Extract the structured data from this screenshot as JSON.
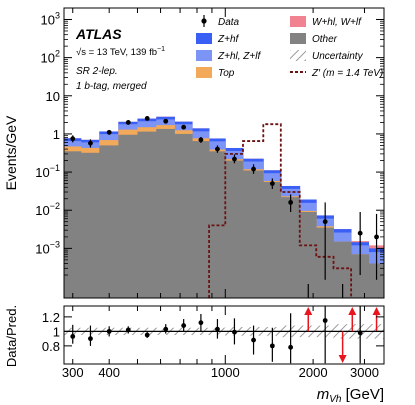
{
  "chart_data": [
    {
      "type": "bar",
      "panel": "main",
      "ylabel": "Events/GeV",
      "yscale": "log",
      "ylim": [
        5e-05,
        2000
      ],
      "y_ticks": [
        {
          "v": 1000,
          "b": "10",
          "e": "3"
        },
        {
          "v": 100,
          "b": "10",
          "e": "2"
        },
        {
          "v": 10,
          "b": "10",
          "e": ""
        },
        {
          "v": 1,
          "b": "1",
          "e": ""
        },
        {
          "v": 0.1,
          "b": "10",
          "e": "−1"
        },
        {
          "v": 0.01,
          "b": "10",
          "e": "−2"
        },
        {
          "v": 0.001,
          "b": "10",
          "e": "−3"
        }
      ],
      "xscale": "log",
      "xlim": [
        280,
        3500
      ],
      "annotations": {
        "experiment": "ATLAS",
        "energy_lumi": "√s = 13 TeV, 139 fb",
        "energy_lumi_sup": "−1",
        "region": "SR 2-lep.",
        "selection": "1 b-tag, merged"
      },
      "legend_placement": "top",
      "legend": [
        {
          "key": "data",
          "label": "Data",
          "style": "marker",
          "color": "#000000"
        },
        {
          "key": "whl",
          "label": "W+hl, W+lf",
          "style": "fill",
          "color": "#f0838f"
        },
        {
          "key": "zhf",
          "label": "Z+hf",
          "style": "fill",
          "color": "#3a5ff5"
        },
        {
          "key": "other",
          "label": "Other",
          "style": "fill",
          "color": "#828282"
        },
        {
          "key": "zhl",
          "label": "Z+hl, Z+lf",
          "style": "fill",
          "color": "#7b94f6"
        },
        {
          "key": "unc",
          "label": "Uncertainty",
          "style": "hatch",
          "color": "#b0b0b0"
        },
        {
          "key": "top",
          "label": "Top",
          "style": "fill",
          "color": "#f2a95a"
        },
        {
          "key": "zp",
          "label": "Z′ (m = 1.4 TeV)",
          "style": "dash",
          "color": "#6b1212"
        }
      ],
      "bins": [
        {
          "lo": 280,
          "hi": 320,
          "other": 0.35,
          "top": 0.12,
          "zhl": 0.18,
          "zhf": 0.12,
          "whl": 0.0
        },
        {
          "lo": 320,
          "hi": 370,
          "other": 0.32,
          "top": 0.11,
          "zhl": 0.17,
          "zhf": 0.1,
          "whl": 0.0
        },
        {
          "lo": 370,
          "hi": 430,
          "other": 0.5,
          "top": 0.19,
          "zhl": 0.3,
          "zhf": 0.17,
          "whl": 0.0
        },
        {
          "lo": 430,
          "hi": 500,
          "other": 0.95,
          "top": 0.35,
          "zhl": 0.5,
          "zhf": 0.28,
          "whl": 0.0
        },
        {
          "lo": 500,
          "hi": 580,
          "other": 1.15,
          "top": 0.35,
          "zhl": 0.65,
          "zhf": 0.37,
          "whl": 0.0
        },
        {
          "lo": 580,
          "hi": 670,
          "other": 1.35,
          "top": 0.35,
          "zhl": 0.7,
          "zhf": 0.42,
          "whl": 0.0
        },
        {
          "lo": 670,
          "hi": 770,
          "other": 1.0,
          "top": 0.25,
          "zhl": 0.55,
          "zhf": 0.3,
          "whl": 0.0
        },
        {
          "lo": 770,
          "hi": 880,
          "other": 0.65,
          "top": 0.12,
          "zhl": 0.4,
          "zhf": 0.23,
          "whl": 0.0
        },
        {
          "lo": 880,
          "hi": 1000,
          "other": 0.35,
          "top": 0.04,
          "zhl": 0.25,
          "zhf": 0.12,
          "whl": 0.0
        },
        {
          "lo": 1000,
          "hi": 1150,
          "other": 0.2,
          "top": 0.018,
          "zhl": 0.14,
          "zhf": 0.07,
          "whl": 0.0
        },
        {
          "lo": 1150,
          "hi": 1350,
          "other": 0.11,
          "top": 0.009,
          "zhl": 0.07,
          "zhf": 0.035,
          "whl": 0.0
        },
        {
          "lo": 1350,
          "hi": 1550,
          "other": 0.055,
          "top": 0.0035,
          "zhl": 0.035,
          "zhf": 0.018,
          "whl": 0.0
        },
        {
          "lo": 1550,
          "hi": 1800,
          "other": 0.022,
          "top": 0.0012,
          "zhl": 0.013,
          "zhf": 0.007,
          "whl": 0.0
        },
        {
          "lo": 1800,
          "hi": 2050,
          "other": 0.009,
          "top": 0.0006,
          "zhl": 0.006,
          "zhf": 0.0035,
          "whl": 0.0
        },
        {
          "lo": 2050,
          "hi": 2350,
          "other": 0.0035,
          "top": 0.0003,
          "zhl": 0.0022,
          "zhf": 0.0013,
          "whl": 0.0
        },
        {
          "lo": 2350,
          "hi": 2700,
          "other": 0.0015,
          "top": 0.0,
          "zhl": 0.0011,
          "zhf": 0.0006,
          "whl": 0.0
        },
        {
          "lo": 2700,
          "hi": 3100,
          "other": 0.0007,
          "top": 0.0,
          "zhl": 0.0005,
          "zhf": 0.00025,
          "whl": 0.0001
        },
        {
          "lo": 3100,
          "hi": 3500,
          "other": 0.0004,
          "top": 0.0,
          "zhl": 0.0004,
          "zhf": 0.0002,
          "whl": 0.0002
        }
      ],
      "zprime": [
        {
          "lo": 880,
          "hi": 1000,
          "y": 0.004
        },
        {
          "lo": 1000,
          "hi": 1150,
          "y": 0.3
        },
        {
          "lo": 1150,
          "hi": 1350,
          "y": 0.65
        },
        {
          "lo": 1350,
          "hi": 1550,
          "y": 1.8
        },
        {
          "lo": 1550,
          "hi": 1800,
          "y": 0.03
        },
        {
          "lo": 1800,
          "hi": 2050,
          "y": 0.0012
        },
        {
          "lo": 2050,
          "hi": 2350,
          "y": 0.0006
        },
        {
          "lo": 2350,
          "hi": 2700,
          "y": 0.0003
        }
      ],
      "data_points": [
        {
          "x": 300,
          "y": 0.75,
          "lo": 0.6,
          "hi": 0.92
        },
        {
          "x": 345,
          "y": 0.57,
          "lo": 0.44,
          "hi": 0.72
        },
        {
          "x": 400,
          "y": 1.1,
          "lo": 0.95,
          "hi": 1.27
        },
        {
          "x": 465,
          "y": 2.0,
          "lo": 1.8,
          "hi": 2.2
        },
        {
          "x": 540,
          "y": 2.55,
          "lo": 2.35,
          "hi": 2.77
        },
        {
          "x": 625,
          "y": 2.15,
          "lo": 1.95,
          "hi": 2.37
        },
        {
          "x": 720,
          "y": 1.5,
          "lo": 1.33,
          "hi": 1.68
        },
        {
          "x": 825,
          "y": 0.7,
          "lo": 0.58,
          "hi": 0.83
        },
        {
          "x": 940,
          "y": 0.4,
          "lo": 0.32,
          "hi": 0.5
        },
        {
          "x": 1075,
          "y": 0.22,
          "lo": 0.17,
          "hi": 0.29
        },
        {
          "x": 1250,
          "y": 0.12,
          "lo": 0.09,
          "hi": 0.16
        },
        {
          "x": 1450,
          "y": 0.05,
          "lo": 0.036,
          "hi": 0.068
        },
        {
          "x": 1675,
          "y": 0.016,
          "lo": 0.009,
          "hi": 0.026
        },
        {
          "x": 2200,
          "y": 0.005,
          "lo": 0.00015,
          "hi": 0.016
        },
        {
          "x": 2900,
          "y": 0.0025,
          "lo": 0.0002,
          "hi": 0.009
        },
        {
          "x": 3300,
          "y": 0.002,
          "lo": 0.00015,
          "hi": 0.008
        }
      ],
      "lower_limit_markers": [
        1925,
        2525
      ]
    },
    {
      "type": "scatter",
      "panel": "ratio",
      "ylabel": "Data/Pred.",
      "xlabel": "m",
      "xlabel_sub": "Vh",
      "xlabel_unit": " [GeV]",
      "xscale": "log",
      "xlim": [
        280,
        3500
      ],
      "ylim": [
        0.55,
        1.35
      ],
      "y_ticks": [
        {
          "v": 0.8,
          "label": "0.8"
        },
        {
          "v": 1.0,
          "label": "1"
        },
        {
          "v": 1.2,
          "label": "1.2"
        }
      ],
      "x_ticks": [
        {
          "v": 300,
          "label": "300"
        },
        {
          "v": 400,
          "label": "400"
        },
        {
          "v": 1000,
          "label": "1000"
        },
        {
          "v": 2000,
          "label": "2000"
        },
        {
          "v": 3000,
          "label": "3000"
        }
      ],
      "uncertainty_band": [
        {
          "lo": 280,
          "hi": 1000,
          "d": 0.05
        },
        {
          "lo": 1000,
          "hi": 1550,
          "d": 0.06
        },
        {
          "lo": 1550,
          "hi": 2350,
          "d": 0.08
        },
        {
          "lo": 2350,
          "hi": 3500,
          "d": 0.1
        }
      ],
      "points": [
        {
          "x": 300,
          "y": 0.93,
          "lo": 0.83,
          "hi": 1.09
        },
        {
          "x": 345,
          "y": 0.9,
          "lo": 0.8,
          "hi": 1.08
        },
        {
          "x": 400,
          "y": 1.0,
          "lo": 0.93,
          "hi": 1.07
        },
        {
          "x": 465,
          "y": 1.02,
          "lo": 0.97,
          "hi": 1.07
        },
        {
          "x": 540,
          "y": 0.95,
          "lo": 0.91,
          "hi": 0.99
        },
        {
          "x": 625,
          "y": 1.03,
          "lo": 0.97,
          "hi": 1.1
        },
        {
          "x": 720,
          "y": 1.08,
          "lo": 1.0,
          "hi": 1.17
        },
        {
          "x": 825,
          "y": 1.12,
          "lo": 1.0,
          "hi": 1.24
        },
        {
          "x": 940,
          "y": 1.03,
          "lo": 0.9,
          "hi": 1.17
        },
        {
          "x": 1075,
          "y": 0.99,
          "lo": 0.82,
          "hi": 1.18
        },
        {
          "x": 1250,
          "y": 0.88,
          "lo": 0.68,
          "hi": 1.08
        },
        {
          "x": 1450,
          "y": 0.8,
          "lo": 0.58,
          "hi": 1.05
        },
        {
          "x": 1675,
          "y": 0.78,
          "lo": 0.56,
          "hi": 1.25
        },
        {
          "x": 2200,
          "y": 1.15,
          "lo": 0.56,
          "hi": 1.35
        },
        {
          "x": 2900,
          "y": 0.98,
          "lo": 0.56,
          "hi": 1.35
        }
      ],
      "arrows_up": [
        1925,
        2725,
        3300
      ],
      "arrows_down": [
        2525
      ]
    }
  ]
}
